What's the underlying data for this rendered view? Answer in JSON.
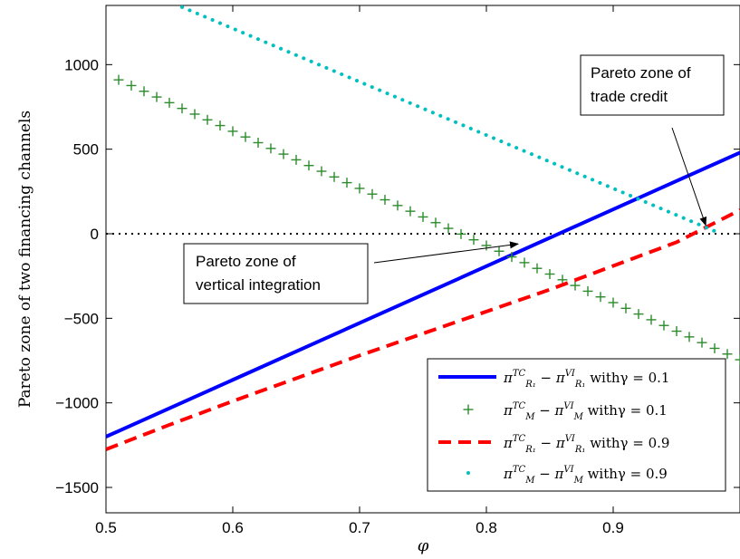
{
  "chart_data": {
    "type": "line",
    "title": "",
    "xlabel": "φ",
    "ylabel": "Pareto zone of two financing channels",
    "xlim": [
      0.5,
      1.0
    ],
    "ylim": [
      -1650,
      1350
    ],
    "xticks": [
      0.5,
      0.6,
      0.7,
      0.8,
      0.9
    ],
    "yticks": [
      1000,
      500,
      0,
      -500,
      -1000,
      -1500
    ],
    "xtick_labels": [
      "0.5",
      "0.6",
      "0.7",
      "0.8",
      "0.9"
    ],
    "ytick_labels": [
      "1000",
      "500",
      "0",
      "−500",
      "−1000",
      "−1500"
    ],
    "grid": false,
    "legend_position": "bottom-right",
    "reference_line": {
      "y": 0,
      "style": "dotted"
    },
    "series": [
      {
        "name": "π^TC_R1 − π^VI_R1 with γ = 0.1",
        "legend": {
          "base": "π",
          "sup1": "TC",
          "sub1": "R₁",
          "base2": " − π",
          "sup2": "VI",
          "sub2": "R₁",
          "tail": "withγ = 0.1"
        },
        "style": "solid",
        "color": "#0000ff",
        "x": [
          0.5,
          1.0
        ],
        "y": [
          -1200,
          480
        ]
      },
      {
        "name": "π^TC_M − π^VI_M with γ = 0.1",
        "legend": {
          "base": "π",
          "sup1": "TC",
          "sub1": "M",
          "base2": " − π",
          "sup2": "VI",
          "sub2": "M",
          "tail": "withγ = 0.1"
        },
        "style": "plus",
        "color": "#2e8b2e",
        "x_start": 0.51,
        "x_end": 1.0,
        "step": 0.01,
        "y_at_start": 910,
        "y_at_end": -745
      },
      {
        "name": "π^TC_R1 − π^VI_R1 with γ = 0.9",
        "legend": {
          "base": "π",
          "sup1": "TC",
          "sub1": "R₁",
          "base2": " − π",
          "sup2": "VI",
          "sub2": "R₁",
          "tail": "withγ = 0.9"
        },
        "style": "dashed",
        "color": "#ff0000",
        "x": [
          0.5,
          0.55,
          0.6,
          0.65,
          0.7,
          0.75,
          0.8,
          0.85,
          0.9,
          0.95,
          1.0
        ],
        "y": [
          -1275,
          -1130,
          -990,
          -855,
          -720,
          -590,
          -460,
          -330,
          -190,
          -50,
          140
        ]
      },
      {
        "name": "π^TC_M − π^VI_M with γ = 0.9",
        "legend": {
          "base": "π",
          "sup1": "TC",
          "sub1": "M",
          "base2": " − π",
          "sup2": "VI",
          "sub2": "M",
          "tail": "withγ = 0.9"
        },
        "style": "dotted",
        "color": "#00bfbf",
        "x": [
          0.56,
          0.985
        ],
        "y": [
          1340,
          0
        ]
      }
    ],
    "annotations": [
      {
        "text_lines": [
          "Pareto zone of",
          "trade credit"
        ],
        "arrow_to": {
          "x": 0.973,
          "y": 50
        }
      },
      {
        "text_lines": [
          "Pareto zone of",
          "vertical integration"
        ],
        "arrow_to": {
          "x": 0.825,
          "y": -60
        }
      }
    ]
  }
}
